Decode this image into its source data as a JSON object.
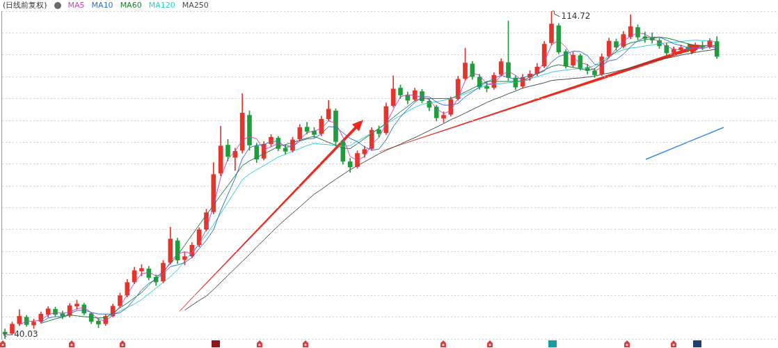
{
  "chart_data": {
    "type": "candlestick",
    "title": "(日线前复权)",
    "legend": "top left",
    "grid": "y",
    "tick_labels": false,
    "marker": "none",
    "categories": [
      null,
      null,
      null,
      null,
      null,
      null,
      null,
      null,
      null,
      null,
      null,
      null,
      null,
      null,
      null,
      null,
      null,
      null,
      null,
      null,
      null,
      null,
      null,
      null,
      null,
      null,
      null,
      null,
      null,
      null,
      null,
      null,
      null,
      null,
      null,
      null,
      null,
      null,
      null,
      null,
      null,
      null,
      null,
      null,
      null,
      null,
      null,
      null,
      null,
      null,
      null,
      null,
      null,
      null,
      null,
      null,
      null,
      null,
      null,
      null,
      null,
      null,
      null,
      null,
      null,
      null,
      null,
      null,
      null,
      null,
      null,
      null,
      null,
      null,
      null,
      null,
      null,
      null,
      null,
      null,
      null,
      null,
      null,
      null,
      null,
      null,
      null,
      null,
      null,
      null,
      null,
      null,
      null,
      null,
      null,
      null,
      null,
      null,
      null,
      null,
      null,
      null,
      null,
      null,
      null,
      null,
      null,
      null
    ],
    "ylim": [
      40.03,
      114.72
    ],
    "yticks": [
      {
        "value": 40.03,
        "label": null
      },
      {
        "value": 45.01,
        "label": null
      },
      {
        "value": 49.99,
        "label": null
      },
      {
        "value": 54.97,
        "label": null
      },
      {
        "value": 59.95,
        "label": null
      },
      {
        "value": 64.93,
        "label": null
      },
      {
        "value": 69.91,
        "label": null
      },
      {
        "value": 74.89,
        "label": null
      },
      {
        "value": 79.87,
        "label": null
      },
      {
        "value": 84.84,
        "label": null
      },
      {
        "value": 89.82,
        "label": null
      },
      {
        "value": 94.8,
        "label": null
      },
      {
        "value": 99.78,
        "label": null
      },
      {
        "value": 104.76,
        "label": null
      },
      {
        "value": 109.74,
        "label": null
      },
      {
        "value": 114.72,
        "label": null
      }
    ],
    "ohlc": [
      [
        41.6,
        42.3,
        40.03,
        41.2
      ],
      [
        41.3,
        43.9,
        41.0,
        43.4
      ],
      [
        43.5,
        46.7,
        43.0,
        45.2
      ],
      [
        45.0,
        45.4,
        42.9,
        43.3
      ],
      [
        43.2,
        44.6,
        42.4,
        43.9
      ],
      [
        44.0,
        46.2,
        43.6,
        45.7
      ],
      [
        45.6,
        47.4,
        45.0,
        46.9
      ],
      [
        46.8,
        47.3,
        45.2,
        45.6
      ],
      [
        45.8,
        46.4,
        44.6,
        45.2
      ],
      [
        45.4,
        48.1,
        45.0,
        47.6
      ],
      [
        47.5,
        48.9,
        46.8,
        48.0
      ],
      [
        47.8,
        48.2,
        45.5,
        45.9
      ],
      [
        45.8,
        46.0,
        43.5,
        44.0
      ],
      [
        44.1,
        44.8,
        42.6,
        43.4
      ],
      [
        43.5,
        45.6,
        43.1,
        45.2
      ],
      [
        45.3,
        48.0,
        45.0,
        47.5
      ],
      [
        47.6,
        50.5,
        47.2,
        49.9
      ],
      [
        50.0,
        53.6,
        49.6,
        52.9
      ],
      [
        53.0,
        56.4,
        52.6,
        55.6
      ],
      [
        55.5,
        57.0,
        54.4,
        56.1
      ],
      [
        56.0,
        56.6,
        53.5,
        54.0
      ],
      [
        54.1,
        54.6,
        52.2,
        53.0
      ],
      [
        53.2,
        57.9,
        52.8,
        57.3
      ],
      [
        57.5,
        65.5,
        57.1,
        62.8
      ],
      [
        62.4,
        63.0,
        57.2,
        58.0
      ],
      [
        58.1,
        59.8,
        56.9,
        58.8
      ],
      [
        58.9,
        62.0,
        58.5,
        61.4
      ],
      [
        61.5,
        65.4,
        61.0,
        64.9
      ],
      [
        65.0,
        69.6,
        64.6,
        68.8
      ],
      [
        69.0,
        80.2,
        68.5,
        77.5
      ],
      [
        77.8,
        88.5,
        77.2,
        84.0
      ],
      [
        84.2,
        85.5,
        80.6,
        81.6
      ],
      [
        81.4,
        83.5,
        78.4,
        82.8
      ],
      [
        83.0,
        95.9,
        82.4,
        91.5
      ],
      [
        91.0,
        92.0,
        83.0,
        84.2
      ],
      [
        84.0,
        84.6,
        80.2,
        81.0
      ],
      [
        81.2,
        85.0,
        80.8,
        84.4
      ],
      [
        84.5,
        86.6,
        83.9,
        86.0
      ],
      [
        85.8,
        86.2,
        82.9,
        83.4
      ],
      [
        83.5,
        84.3,
        82.1,
        82.8
      ],
      [
        83.0,
        86.0,
        82.6,
        85.4
      ],
      [
        85.6,
        88.9,
        85.1,
        88.2
      ],
      [
        88.3,
        89.4,
        86.7,
        87.3
      ],
      [
        87.4,
        88.2,
        85.9,
        86.6
      ],
      [
        86.8,
        90.8,
        86.3,
        90.1
      ],
      [
        90.2,
        94.4,
        89.7,
        92.4
      ],
      [
        92.0,
        92.5,
        84.0,
        85.0
      ],
      [
        85.0,
        85.4,
        79.8,
        80.5
      ],
      [
        80.4,
        81.2,
        78.0,
        79.2
      ],
      [
        79.3,
        82.9,
        78.9,
        82.3
      ],
      [
        82.2,
        84.0,
        81.4,
        83.2
      ],
      [
        83.4,
        88.2,
        83.0,
        87.6
      ],
      [
        87.7,
        88.6,
        86.0,
        86.8
      ],
      [
        87.0,
        93.8,
        86.6,
        93.0
      ],
      [
        93.2,
        100.0,
        92.8,
        97.0
      ],
      [
        97.2,
        97.9,
        94.8,
        95.6
      ],
      [
        95.5,
        96.3,
        93.6,
        94.4
      ],
      [
        94.6,
        97.2,
        94.2,
        96.6
      ],
      [
        96.4,
        96.9,
        93.8,
        94.3
      ],
      [
        94.2,
        94.8,
        92.0,
        92.8
      ],
      [
        92.9,
        93.3,
        89.7,
        90.4
      ],
      [
        90.3,
        91.8,
        89.3,
        91.0
      ],
      [
        91.2,
        95.2,
        90.8,
        94.6
      ],
      [
        94.8,
        99.9,
        94.4,
        99.2
      ],
      [
        99.4,
        106.3,
        99.0,
        102.9
      ],
      [
        102.7,
        103.3,
        99.2,
        99.8
      ],
      [
        99.7,
        100.3,
        96.9,
        97.5
      ],
      [
        97.6,
        98.7,
        96.3,
        97.1
      ],
      [
        97.3,
        100.7,
        96.9,
        100.1
      ],
      [
        100.3,
        103.9,
        99.9,
        103.2
      ],
      [
        103.0,
        112.5,
        98.8,
        99.6
      ],
      [
        99.5,
        100.0,
        96.8,
        97.4
      ],
      [
        97.6,
        100.3,
        97.1,
        99.6
      ],
      [
        99.7,
        101.2,
        98.9,
        100.4
      ],
      [
        100.5,
        102.8,
        100.0,
        102.0
      ],
      [
        102.2,
        107.8,
        101.8,
        107.2
      ],
      [
        107.5,
        114.72,
        107.0,
        111.8
      ],
      [
        111.4,
        111.9,
        105.0,
        105.4
      ],
      [
        105.5,
        106.0,
        101.7,
        102.2
      ],
      [
        102.4,
        105.4,
        101.9,
        104.7
      ],
      [
        104.6,
        105.0,
        101.3,
        101.8
      ],
      [
        101.9,
        102.6,
        100.4,
        101.2
      ],
      [
        101.1,
        101.7,
        99.6,
        100.2
      ],
      [
        100.4,
        105.0,
        100.0,
        104.3
      ],
      [
        104.5,
        108.6,
        104.1,
        107.9
      ],
      [
        107.8,
        108.4,
        105.8,
        106.5
      ],
      [
        106.7,
        110.1,
        106.3,
        109.4
      ],
      [
        108.9,
        113.9,
        108.4,
        111.2
      ],
      [
        111.0,
        111.6,
        108.2,
        108.8
      ],
      [
        108.9,
        110.0,
        107.6,
        108.5
      ],
      [
        108.6,
        109.8,
        107.4,
        108.1
      ],
      [
        108.0,
        108.6,
        106.2,
        106.8
      ],
      [
        106.9,
        107.4,
        104.5,
        105.2
      ],
      [
        105.3,
        106.6,
        104.6,
        106.0
      ],
      [
        105.9,
        107.0,
        105.0,
        106.4
      ],
      [
        106.5,
        107.3,
        105.4,
        105.9
      ],
      [
        105.9,
        107.5,
        105.5,
        106.9
      ],
      [
        106.8,
        107.8,
        105.9,
        106.5
      ],
      [
        106.6,
        108.5,
        106.2,
        108.0
      ],
      [
        107.8,
        108.9,
        103.9,
        104.4
      ],
      null,
      null,
      null,
      null,
      null,
      null,
      null,
      null
    ],
    "colors": [
      "#1f9e3c",
      "#e5352b",
      "#e5352b",
      "#1f9e3c",
      "#e5352b",
      "#e5352b",
      "#e5352b",
      "#1f9e3c",
      "#1f9e3c",
      "#e5352b",
      "#e5352b",
      "#1f9e3c",
      "#1f9e3c",
      "#1f9e3c",
      "#e5352b",
      "#e5352b",
      "#e5352b",
      "#e5352b",
      "#e5352b",
      "#e5352b",
      "#1f9e3c",
      "#1f9e3c",
      "#e5352b",
      "#e5352b",
      "#1f9e3c",
      "#e5352b",
      "#e5352b",
      "#e5352b",
      "#e5352b",
      "#e5352b",
      "#e5352b",
      "#1f9e3c",
      "#e5352b",
      "#e5352b",
      "#1f9e3c",
      "#1f9e3c",
      "#e5352b",
      "#e5352b",
      "#1f9e3c",
      "#1f9e3c",
      "#e5352b",
      "#e5352b",
      "#1f9e3c",
      "#1f9e3c",
      "#e5352b",
      "#e5352b",
      "#1f9e3c",
      "#1f9e3c",
      "#1f9e3c",
      "#e5352b",
      "#e5352b",
      "#e5352b",
      "#1f9e3c",
      "#e5352b",
      "#e5352b",
      "#1f9e3c",
      "#1f9e3c",
      "#e5352b",
      "#1f9e3c",
      "#1f9e3c",
      "#1f9e3c",
      "#e5352b",
      "#e5352b",
      "#e5352b",
      "#e5352b",
      "#1f9e3c",
      "#1f9e3c",
      "#1f9e3c",
      "#e5352b",
      "#e5352b",
      "#1f9e3c",
      "#1f9e3c",
      "#e5352b",
      "#e5352b",
      "#e5352b",
      "#e5352b",
      "#e5352b",
      "#1f9e3c",
      "#1f9e3c",
      "#e5352b",
      "#1f9e3c",
      "#1f9e3c",
      "#1f9e3c",
      "#e5352b",
      "#e5352b",
      "#1f9e3c",
      "#e5352b",
      "#e5352b",
      "#1f9e3c",
      "#1f9e3c",
      "#1f9e3c",
      "#1f9e3c",
      "#1f9e3c",
      "#e5352b",
      "#e5352b",
      "#1f9e3c",
      "#e5352b",
      "#1f9e3c",
      "#e5352b",
      "#1f9e3c",
      null,
      null,
      null,
      null,
      null,
      null,
      null,
      null
    ],
    "series": [
      {
        "type": "line",
        "name": "MA5",
        "color": "#d23fc0",
        "values": [
          null,
          null,
          43.3,
          44.0,
          44.1,
          44.3,
          45.5,
          46.1,
          45.9,
          46.1,
          46.9,
          47.2,
          46.0,
          44.4,
          44.2,
          45.4,
          47.5,
          50.1,
          52.8,
          54.9,
          55.2,
          54.4,
          54.8,
          57.7,
          59.4,
          59.9,
          59.4,
          61.7,
          65.0,
          70.4,
          76.8,
          81.0,
          82.8,
          85.3,
          86.2,
          85.6,
          83.2,
          83.8,
          84.6,
          84.1,
          83.9,
          85.5,
          87.0,
          87.4,
          88.0,
          89.7,
          89.2,
          86.0,
          81.6,
          80.7,
          81.6,
          84.4,
          85.9,
          89.1,
          92.3,
          95.2,
          95.7,
          95.5,
          95.1,
          94.6,
          92.5,
          91.4,
          92.0,
          94.9,
          98.9,
          100.6,
          100.1,
          98.1,
          98.2,
          100.1,
          101.0,
          100.1,
          98.9,
          99.1,
          100.7,
          103.2,
          107.0,
          108.1,
          106.5,
          104.1,
          102.9,
          102.6,
          101.1,
          101.9,
          104.1,
          106.2,
          107.9,
          109.0,
          109.8,
          109.5,
          108.5,
          107.8,
          106.7,
          106.0,
          105.9,
          106.1,
          106.4,
          106.4,
          107.1,
          106.3,
          null,
          null,
          null,
          null,
          null,
          null,
          null,
          null
        ]
      },
      {
        "type": "line",
        "name": "MA10",
        "color": "#2f6fd6",
        "values": [
          null,
          null,
          null,
          null,
          null,
          43.8,
          44.8,
          45.1,
          45.1,
          45.8,
          46.5,
          46.6,
          46.1,
          45.7,
          45.7,
          45.7,
          46.0,
          47.2,
          49.1,
          51.2,
          52.7,
          53.6,
          54.9,
          56.5,
          56.9,
          57.4,
          58.6,
          60.6,
          62.5,
          64.9,
          69.3,
          73.0,
          76.6,
          81.1,
          83.6,
          84.2,
          84.3,
          85.0,
          85.1,
          83.7,
          83.9,
          85.1,
          85.6,
          85.7,
          86.8,
          88.4,
          88.3,
          87.0,
          85.7,
          85.0,
          83.8,
          83.0,
          83.3,
          85.4,
          88.4,
          90.6,
          92.4,
          93.9,
          95.2,
          95.2,
          94.0,
          93.3,
          93.3,
          93.7,
          95.2,
          96.3,
          97.5,
          98.5,
          99.4,
          100.1,
          99.6,
          99.2,
          99.5,
          100.1,
          100.4,
          101.1,
          103.1,
          104.4,
          104.9,
          105.6,
          105.5,
          104.6,
          102.6,
          102.4,
          103.4,
          103.7,
          104.9,
          106.6,
          108.0,
          108.7,
          108.8,
          108.8,
          108.1,
          107.3,
          106.9,
          106.4,
          106.2,
          106.2,
          106.6,
          106.4,
          null,
          null,
          null,
          null,
          null,
          null,
          null,
          null
        ]
      },
      {
        "type": "line",
        "name": "MA60",
        "color": "#1e7b34",
        "values": [
          null,
          null,
          null,
          null,
          null,
          43.6,
          44.1,
          44.6,
          45.0,
          45.5,
          45.3,
          45.1,
          45.0,
          44.8,
          44.9,
          46.0,
          47.1,
          48.2,
          49.4,
          50.6,
          52.3,
          53.9,
          55.5,
          57.2,
          59.1,
          61.4,
          63.7,
          66.0,
          68.3,
          70.5,
          72.8,
          75.0,
          77.2,
          79.5,
          80.6,
          81.4,
          82.2,
          83.0,
          83.9,
          84.3,
          84.8,
          85.3,
          85.8,
          86.2,
          85.5,
          84.8,
          84.2,
          83.5,
          83.4,
          84.5,
          85.7,
          86.8,
          88.0,
          89.2,
          90.5,
          91.8,
          93.0,
          94.3,
          94.8,
          94.8,
          94.8,
          94.8,
          94.8,
          95.5,
          96.3,
          97.1,
          97.9,
          98.7,
          98.7,
          98.7,
          98.7,
          98.7,
          98.9,
          99.7,
          100.5,
          101.3,
          102.1,
          102.5,
          102.2,
          101.9,
          101.6,
          101.2,
          101.6,
          102.9,
          104.2,
          105.5,
          106.8,
          107.5,
          107.8,
          108.2,
          108.5,
          108.8,
          108.6,
          108.2,
          107.7,
          107.3,
          106.8,
          106.9,
          106.9,
          106.9,
          null,
          null,
          null,
          null,
          null,
          null,
          null,
          null
        ]
      },
      {
        "type": "line",
        "name": "MA120",
        "color": "#2fcfd6",
        "values": [
          null,
          null,
          null,
          null,
          null,
          null,
          null,
          null,
          null,
          null,
          null,
          null,
          null,
          null,
          44.8,
          45.6,
          46.4,
          47.2,
          48.0,
          49.0,
          50.3,
          51.6,
          52.9,
          54.2,
          55.8,
          57.8,
          59.8,
          61.7,
          63.7,
          66.1,
          68.6,
          71.2,
          73.7,
          76.3,
          77.6,
          78.6,
          79.5,
          80.5,
          81.5,
          82.1,
          82.8,
          83.4,
          84.1,
          84.6,
          84.4,
          84.3,
          84.1,
          83.9,
          84.1,
          85.1,
          86.0,
          87.0,
          88.0,
          89.0,
          90.0,
          90.9,
          91.9,
          92.8,
          93.5,
          93.8,
          94.1,
          94.4,
          94.8,
          95.3,
          95.9,
          96.6,
          97.2,
          97.9,
          98.1,
          98.2,
          98.4,
          98.6,
          98.8,
          99.3,
          99.8,
          100.3,
          100.8,
          101.1,
          101.3,
          101.5,
          101.6,
          101.8,
          102.3,
          103.4,
          104.5,
          105.3,
          105.9,
          106.3,
          106.5,
          106.8,
          107.0,
          107.3,
          107.5,
          107.6,
          107.8,
          108.0,
          108.1,
          108.0,
          107.9,
          107.7,
          null,
          null,
          null,
          null,
          null,
          null,
          null,
          null
        ]
      },
      {
        "type": "line",
        "name": "MA250",
        "color": "#4a4a4a",
        "values": [
          null,
          null,
          null,
          null,
          null,
          null,
          null,
          null,
          null,
          null,
          null,
          null,
          null,
          null,
          null,
          null,
          null,
          null,
          null,
          null,
          null,
          null,
          null,
          null,
          null,
          46.6,
          47.7,
          48.8,
          49.8,
          51.3,
          52.9,
          54.5,
          56.1,
          57.7,
          59.3,
          61.0,
          62.6,
          64.2,
          65.8,
          67.3,
          68.7,
          70.1,
          71.6,
          73.0,
          74.1,
          75.3,
          76.4,
          77.5,
          78.6,
          79.5,
          80.4,
          81.3,
          82.2,
          83.0,
          83.7,
          84.4,
          85.2,
          85.9,
          86.7,
          87.5,
          88.3,
          89.1,
          90.0,
          90.7,
          91.5,
          92.3,
          93.1,
          93.9,
          94.6,
          95.2,
          95.9,
          96.5,
          97.2,
          97.6,
          98.0,
          98.4,
          98.9,
          99.1,
          99.2,
          99.4,
          99.5,
          99.7,
          99.9,
          100.3,
          100.6,
          101.0,
          101.4,
          101.8,
          102.3,
          102.8,
          103.3,
          103.7,
          104.0,
          104.3,
          104.7,
          105.0,
          105.3,
          105.6,
          105.8,
          106.1,
          null,
          null,
          null,
          null,
          null,
          null,
          null,
          null
        ]
      }
    ],
    "annotations": [
      "114.72",
      "40.03"
    ]
  }
}
